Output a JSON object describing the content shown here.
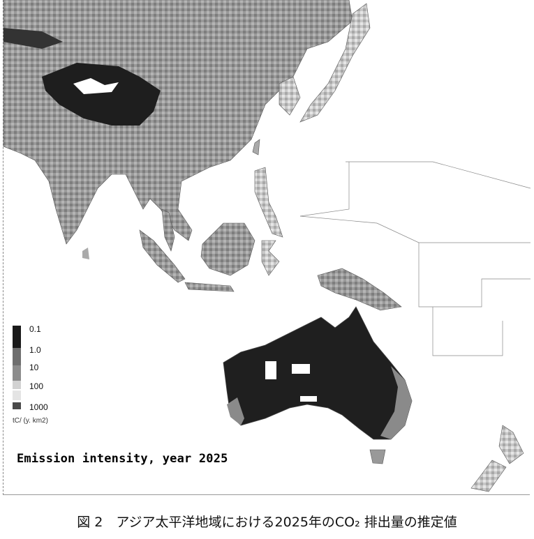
{
  "map": {
    "title": "Emission intensity, year 2025",
    "legend": {
      "levels": [
        "0.1",
        "1.0",
        "10",
        "100",
        "1000"
      ],
      "colors": [
        "#1a1a1a",
        "#6e6e6e",
        "#8c8c8c",
        "#d2d2d2",
        "#4a4a4a"
      ],
      "unit": "tC/ (y. km2)"
    }
  },
  "caption": "図 2　アジア太平洋地域における2025年のCO₂ 排出量の推定値"
}
